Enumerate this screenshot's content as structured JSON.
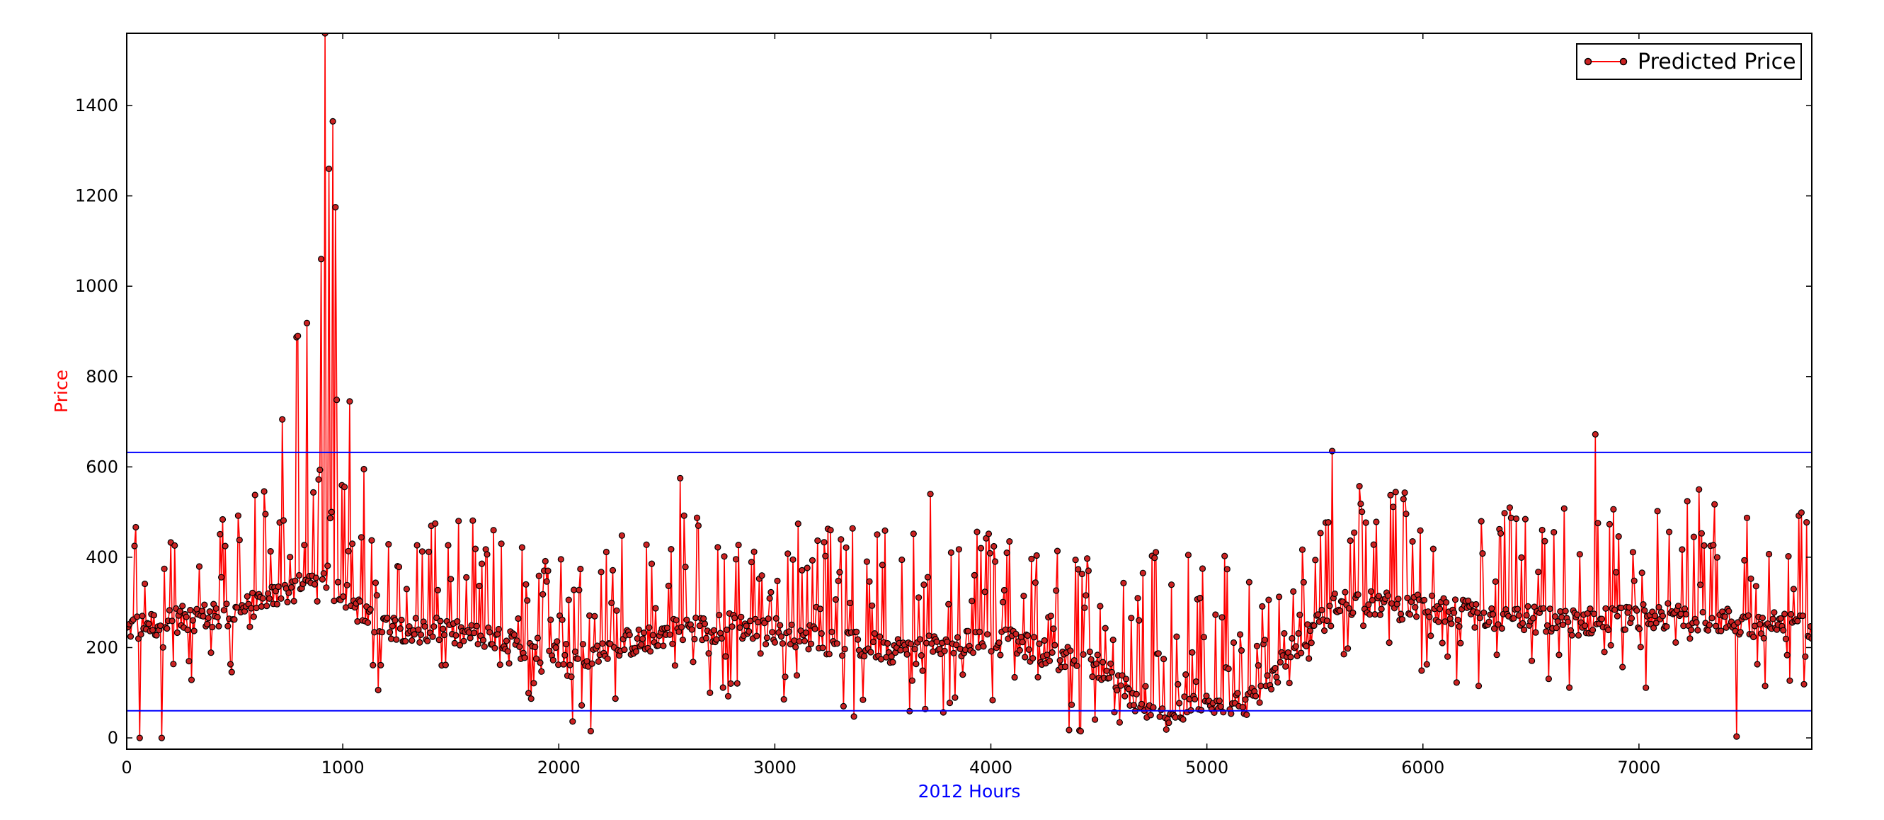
{
  "chart_data": {
    "type": "line",
    "title": "",
    "xlabel": "2012 Hours",
    "ylabel": "Price",
    "xlim": [
      0,
      7800
    ],
    "ylim": [
      -25,
      1560
    ],
    "x_ticks": [
      0,
      1000,
      2000,
      3000,
      4000,
      5000,
      6000,
      7000
    ],
    "y_ticks": [
      0,
      200,
      400,
      600,
      800,
      1000,
      1200,
      1400
    ],
    "grid": false,
    "legend_position": "top-right",
    "colors": {
      "series_line": "#ff0000",
      "series_marker_fill": "#cc2222",
      "series_marker_edge": "#000000",
      "reference_lines": "#0000ff",
      "xlabel": "#0000ff",
      "ylabel": "#ff0000"
    },
    "series": [
      {
        "name": "Predicted Price",
        "sample_step_hours": 6,
        "note_sampling": "",
        "x": [
          0,
          20,
          40,
          60,
          80,
          100,
          120,
          140,
          160,
          180,
          200,
          250,
          300,
          350,
          400,
          450,
          500,
          550,
          600,
          650,
          700,
          750,
          770,
          790,
          800,
          820,
          850,
          880,
          900,
          910,
          920,
          930,
          940,
          950,
          960,
          970,
          980,
          1000,
          1020,
          1040,
          1060,
          1080,
          1100,
          1150,
          1200,
          1250,
          1300,
          1350,
          1400,
          1450,
          1500,
          1600,
          1700,
          1800,
          1900,
          2000,
          2050,
          2100,
          2150,
          2200,
          2250,
          2300,
          2350,
          2400,
          2450,
          2500,
          2550,
          2600,
          2650,
          2700,
          2750,
          2800,
          2850,
          2900,
          2950,
          3000,
          3100,
          3200,
          3230,
          3300,
          3400,
          3500,
          3550,
          3600,
          3700,
          3720,
          3800,
          3900,
          4000,
          4100,
          4200,
          4300,
          4400,
          4500,
          4600,
          4650,
          4700,
          4750,
          4800,
          4850,
          4900,
          4950,
          5000,
          5100,
          5200,
          5250,
          5300,
          5400,
          5500,
          5580,
          5600,
          5700,
          5800,
          5900,
          6000,
          6050,
          6100,
          6200,
          6300,
          6400,
          6500,
          6600,
          6700,
          6800,
          6820,
          6900,
          7000,
          7100,
          7200,
          7280,
          7300,
          7400,
          7450,
          7500,
          7600,
          7700,
          7780
        ],
        "trend": [
          235,
          245,
          250,
          240,
          248,
          255,
          250,
          252,
          255,
          258,
          262,
          262,
          265,
          270,
          268,
          270,
          275,
          285,
          300,
          305,
          315,
          325,
          330,
          330,
          332,
          328,
          330,
          330,
          332,
          335,
          338,
          338,
          330,
          330,
          330,
          328,
          325,
          318,
          312,
          300,
          290,
          280,
          265,
          255,
          250,
          245,
          242,
          240,
          238,
          235,
          230,
          225,
          215,
          205,
          195,
          190,
          185,
          180,
          175,
          190,
          205,
          210,
          212,
          215,
          220,
          235,
          240,
          245,
          240,
          240,
          245,
          250,
          245,
          240,
          235,
          240,
          230,
          220,
          215,
          210,
          205,
          200,
          195,
          195,
          190,
          200,
          200,
          210,
          215,
          210,
          195,
          180,
          170,
          160,
          130,
          80,
          60,
          50,
          45,
          55,
          62,
          65,
          70,
          78,
          80,
          85,
          130,
          200,
          240,
          280,
          300,
          300,
          295,
          290,
          288,
          285,
          280,
          275,
          270,
          265,
          262,
          258,
          255,
          260,
          265,
          260,
          265,
          270,
          268,
          268,
          265,
          260,
          255,
          250,
          250,
          248,
          250
        ]
      }
    ],
    "reference_lines": [
      {
        "y": 632
      },
      {
        "y": 60
      }
    ],
    "annotations": {
      "peak": {
        "x": 920,
        "y": 1560
      },
      "spikes": [
        {
          "x": 790,
          "y": 890
        },
        {
          "x": 900,
          "y": 1060
        },
        {
          "x": 935,
          "y": 1260
        },
        {
          "x": 955,
          "y": 1365
        },
        {
          "x": 965,
          "y": 1175
        },
        {
          "x": 1030,
          "y": 745
        },
        {
          "x": 1100,
          "y": 595
        },
        {
          "x": 2560,
          "y": 575
        },
        {
          "x": 3720,
          "y": 540
        },
        {
          "x": 5580,
          "y": 635
        },
        {
          "x": 6800,
          "y": 672
        },
        {
          "x": 7280,
          "y": 550
        }
      ],
      "dips": [
        {
          "x": 60,
          "y": 0
        },
        {
          "x": 160,
          "y": 0
        },
        {
          "x": 2150,
          "y": 15
        },
        {
          "x": 7450,
          "y": 3
        }
      ]
    }
  }
}
